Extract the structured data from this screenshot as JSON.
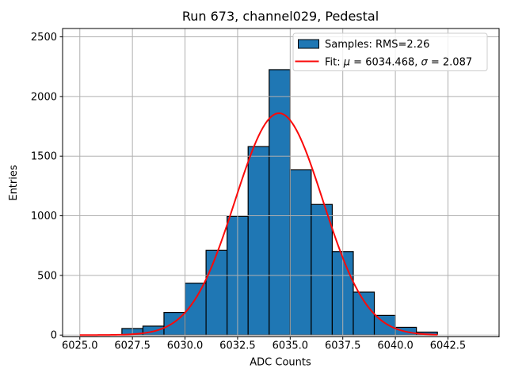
{
  "figure": {
    "title": "Run 673, channel029, Pedestal",
    "xlabel": "ADC Counts",
    "ylabel": "Entries"
  },
  "legend": {
    "samples_label": "Samples: RMS=2.26",
    "fit_parts": [
      "Fit: ",
      "μ",
      " = 6034.468, ",
      "σ",
      " = 2.087"
    ]
  },
  "chart_data": {
    "type": "histogram",
    "title": "Run 673, channel029, Pedestal",
    "xlabel": "ADC Counts",
    "ylabel": "Entries",
    "bin_edges": [
      6027,
      6028,
      6029,
      6030,
      6031,
      6032,
      6033,
      6034,
      6035,
      6036,
      6037,
      6038,
      6039,
      6040,
      6041,
      6042
    ],
    "counts": [
      55,
      75,
      190,
      435,
      710,
      995,
      1580,
      2225,
      1385,
      1095,
      700,
      360,
      165,
      65,
      25
    ],
    "samples_rms": 2.26,
    "fit": {
      "type": "gaussian",
      "mu": 6034.468,
      "sigma": 2.087,
      "peak": 1860,
      "x_range": [
        6025,
        6042
      ]
    },
    "x_ticks": [
      6025.0,
      6027.5,
      6030.0,
      6032.5,
      6035.0,
      6037.5,
      6040.0,
      6042.5
    ],
    "x_tick_labels": [
      "6025.0",
      "6027.5",
      "6030.0",
      "6032.5",
      "6035.0",
      "6037.5",
      "6040.0",
      "6042.5"
    ],
    "y_ticks": [
      0,
      500,
      1000,
      1500,
      2000,
      2500
    ],
    "y_tick_labels": [
      "0",
      "500",
      "1000",
      "1500",
      "2000",
      "2500"
    ],
    "xlim": [
      6024.18,
      6044.93
    ],
    "ylim": [
      -15,
      2570
    ],
    "grid": true,
    "grid_above_bars": true,
    "legend_position": "upper right"
  },
  "colors": {
    "bar_fill": "#1f77b4",
    "bar_edge": "#000000",
    "fit_line": "#fa0a0a",
    "grid": "#b0b0b0",
    "spine": "#000000",
    "legend_border": "#cccccc",
    "legend_fill": "rgba(255,255,255,0.8)",
    "background": "#ffffff",
    "text": "#000000"
  }
}
